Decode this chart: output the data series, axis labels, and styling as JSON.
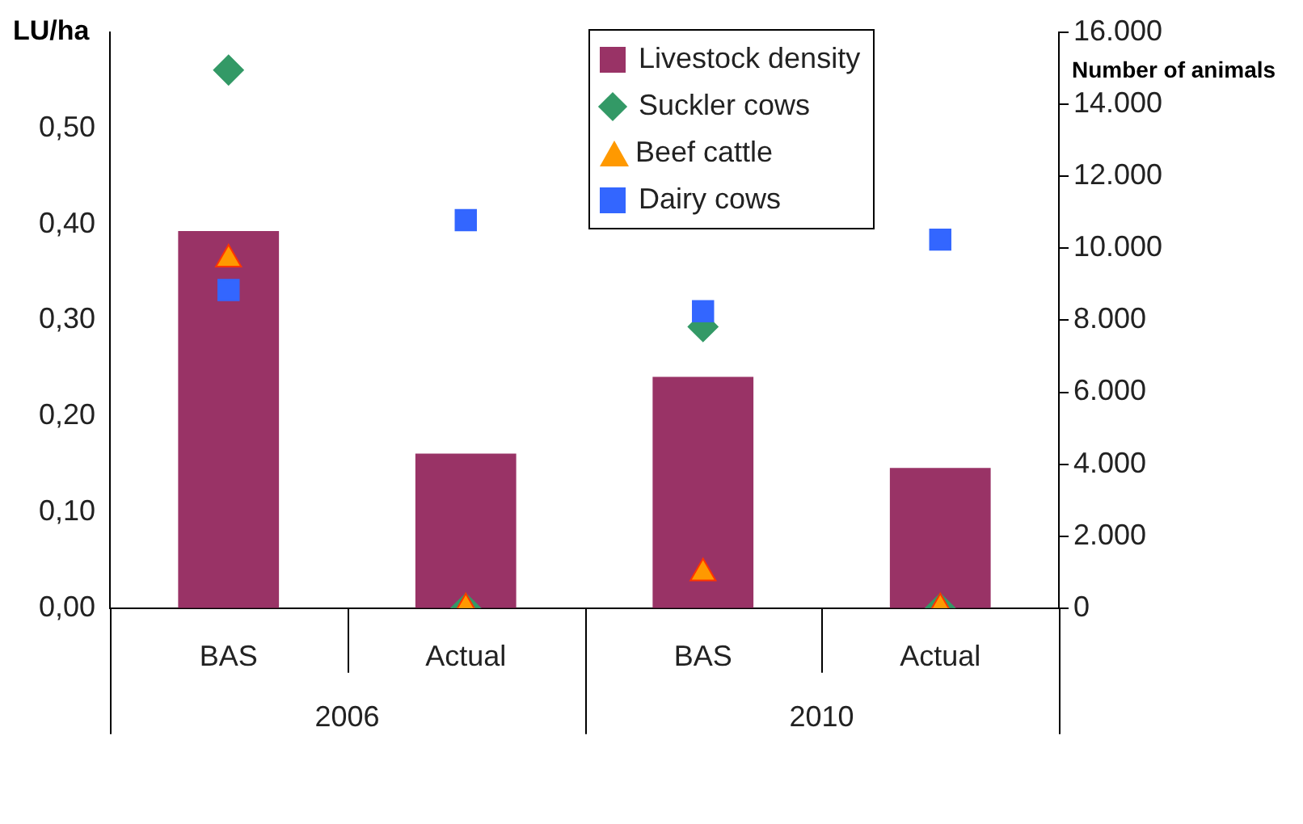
{
  "chart_data": {
    "type": "bar",
    "ylabel": "LU/ha",
    "y2label": "Number of animals",
    "categories": [
      "BAS",
      "Actual",
      "BAS",
      "Actual"
    ],
    "annotations": [
      "2006",
      "2010"
    ],
    "ylim": [
      0,
      0.6
    ],
    "yticks": [
      {
        "value": 0,
        "label": "0,00"
      },
      {
        "value": 0.1,
        "label": "0,10"
      },
      {
        "value": 0.2,
        "label": "0,20"
      },
      {
        "value": 0.3,
        "label": "0,30"
      },
      {
        "value": 0.4,
        "label": "0,40"
      },
      {
        "value": 0.5,
        "label": "0,50"
      }
    ],
    "y2lim": [
      0,
      16000
    ],
    "y2ticks": [
      {
        "value": 0,
        "label": "0"
      },
      {
        "value": 2000,
        "label": "2.000"
      },
      {
        "value": 4000,
        "label": "4.000"
      },
      {
        "value": 6000,
        "label": "6.000"
      },
      {
        "value": 8000,
        "label": "8.000"
      },
      {
        "value": 10000,
        "label": "10.000"
      },
      {
        "value": 12000,
        "label": "12.000"
      },
      {
        "value": 14000,
        "label": "14.000"
      },
      {
        "value": 16000,
        "label": "16.000"
      }
    ],
    "grid": false,
    "legend": "top",
    "series": [
      {
        "name": "Livestock density",
        "color": "#993366",
        "values": [
          0.393,
          0.161,
          0.241,
          0.146
        ]
      },
      {
        "name": "Suckler cows",
        "type": "scatter",
        "axis": "y2",
        "marker": "diamond",
        "color": "#339966",
        "values": [
          14950,
          0,
          7820,
          0
        ]
      },
      {
        "name": "Beef cattle",
        "type": "scatter",
        "axis": "y2",
        "marker": "triangle",
        "color": "#ff9900",
        "values": [
          9690,
          0,
          970,
          0
        ]
      },
      {
        "name": "Dairy cows",
        "type": "scatter",
        "axis": "y2",
        "marker": "square",
        "color": "#3366ff",
        "values": [
          8840,
          10780,
          8250,
          10240
        ]
      }
    ]
  }
}
